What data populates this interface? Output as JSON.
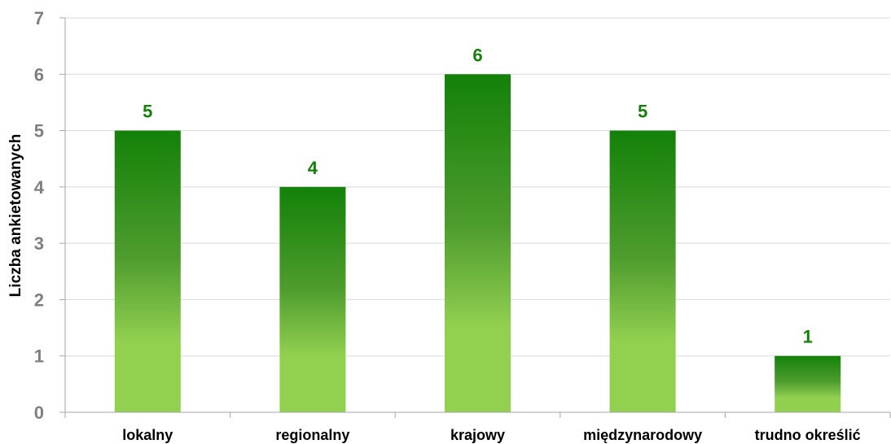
{
  "chart_data": {
    "type": "bar",
    "categories": [
      "lokalny",
      "regionalny",
      "krajowy",
      "międzynarodowy",
      "trudno określić"
    ],
    "values": [
      5,
      4,
      6,
      5,
      1
    ],
    "data_labels": [
      "5",
      "4",
      "6",
      "5",
      "1"
    ],
    "title": "",
    "xlabel": "",
    "ylabel": "Liczba ankietowanych",
    "ylim": [
      0,
      7
    ],
    "yticks": [
      "0",
      "1",
      "2",
      "3",
      "4",
      "5",
      "6",
      "7"
    ],
    "grid": true,
    "legend": "none",
    "colors": {
      "bar_top": "#138109",
      "bar_mid": "#4e9c2e",
      "bar_bottom": "#92d050",
      "data_label": "#138109",
      "grid": "#d9d9d9",
      "axis": "#a6a6a6",
      "y_tick": "#7f7f7f",
      "x_tick": "#000000"
    }
  }
}
